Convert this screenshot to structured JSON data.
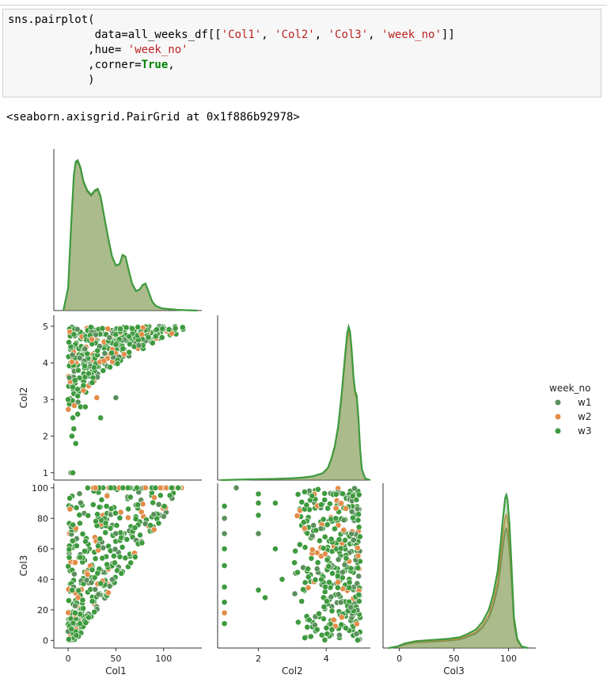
{
  "notebook": {
    "code_lines": [
      [
        {
          "t": "sns.pairplot("
        }
      ],
      [
        {
          "t": "             data=all_weeks_df[["
        },
        {
          "t": "'Col1'",
          "c": "str"
        },
        {
          "t": ", "
        },
        {
          "t": "'Col2'",
          "c": "str"
        },
        {
          "t": ", "
        },
        {
          "t": "'Col3'",
          "c": "str"
        },
        {
          "t": ", "
        },
        {
          "t": "'week_no'",
          "c": "str"
        },
        {
          "t": "]]"
        }
      ],
      [
        {
          "t": "            ,hue= "
        },
        {
          "t": "'week_no'",
          "c": "str"
        }
      ],
      [
        {
          "t": "            ,corner="
        },
        {
          "t": "True",
          "c": "kw"
        },
        {
          "t": ","
        }
      ],
      [
        {
          "t": "            )"
        }
      ]
    ],
    "output_repr": "<seaborn.axisgrid.PairGrid at 0x1f886b92978>"
  },
  "chart_data": {
    "type": "pairplot",
    "variables": [
      "Col1",
      "Col2",
      "Col3"
    ],
    "hue": "week_no",
    "corner": true,
    "legend": {
      "title": "week_no",
      "placement": "right",
      "entries": [
        {
          "label": "w1",
          "color": "#5a8f5c"
        },
        {
          "label": "w2",
          "color": "#e28c48"
        },
        {
          "label": "w3",
          "color": "#3e9a3e"
        }
      ]
    },
    "axes": {
      "Col1": {
        "range": [
          -15,
          140
        ],
        "ticks": [
          0,
          50,
          100
        ],
        "label": "Col1"
      },
      "Col2": {
        "range": [
          0.8,
          5.3
        ],
        "ticks": [
          1,
          2,
          3,
          4,
          5
        ],
        "label": "Col2"
      },
      "Col3": {
        "range": [
          -5,
          103
        ],
        "ticks": [
          0,
          20,
          40,
          60,
          80,
          100
        ],
        "label": "Col3"
      }
    },
    "diag_col3_range": [
      -15,
      125
    ],
    "kde": {
      "Col1": [
        [
          -5,
          0
        ],
        [
          0,
          0.15
        ],
        [
          3,
          0.55
        ],
        [
          6,
          0.9
        ],
        [
          8,
          0.99
        ],
        [
          10,
          1.0
        ],
        [
          13,
          0.95
        ],
        [
          16,
          0.86
        ],
        [
          20,
          0.8
        ],
        [
          24,
          0.77
        ],
        [
          28,
          0.8
        ],
        [
          31,
          0.81
        ],
        [
          34,
          0.76
        ],
        [
          38,
          0.62
        ],
        [
          42,
          0.48
        ],
        [
          46,
          0.36
        ],
        [
          50,
          0.3
        ],
        [
          54,
          0.31
        ],
        [
          57,
          0.37
        ],
        [
          60,
          0.36
        ],
        [
          63,
          0.28
        ],
        [
          67,
          0.18
        ],
        [
          71,
          0.13
        ],
        [
          75,
          0.14
        ],
        [
          78,
          0.17
        ],
        [
          81,
          0.18
        ],
        [
          84,
          0.13
        ],
        [
          88,
          0.06
        ],
        [
          92,
          0.03
        ],
        [
          98,
          0.015
        ],
        [
          105,
          0.01
        ],
        [
          115,
          0.005
        ],
        [
          125,
          0.002
        ],
        [
          135,
          0
        ]
      ],
      "Col2": [
        [
          0.9,
          0
        ],
        [
          1.5,
          0.003
        ],
        [
          2.0,
          0.006
        ],
        [
          2.5,
          0.008
        ],
        [
          3.0,
          0.012
        ],
        [
          3.3,
          0.016
        ],
        [
          3.6,
          0.025
        ],
        [
          3.9,
          0.045
        ],
        [
          4.05,
          0.08
        ],
        [
          4.15,
          0.14
        ],
        [
          4.25,
          0.22
        ],
        [
          4.35,
          0.35
        ],
        [
          4.45,
          0.55
        ],
        [
          4.55,
          0.8
        ],
        [
          4.62,
          0.96
        ],
        [
          4.66,
          1.0
        ],
        [
          4.7,
          0.97
        ],
        [
          4.75,
          0.85
        ],
        [
          4.8,
          0.68
        ],
        [
          4.85,
          0.58
        ],
        [
          4.9,
          0.55
        ],
        [
          4.95,
          0.4
        ],
        [
          5.0,
          0.2
        ],
        [
          5.05,
          0.07
        ],
        [
          5.15,
          0.01
        ],
        [
          5.3,
          0
        ]
      ],
      "Col3": [
        [
          -10,
          0
        ],
        [
          -2,
          0.01
        ],
        [
          5,
          0.03
        ],
        [
          15,
          0.045
        ],
        [
          25,
          0.05
        ],
        [
          35,
          0.055
        ],
        [
          45,
          0.06
        ],
        [
          55,
          0.07
        ],
        [
          62,
          0.09
        ],
        [
          70,
          0.12
        ],
        [
          76,
          0.17
        ],
        [
          82,
          0.25
        ],
        [
          86,
          0.35
        ],
        [
          90,
          0.5
        ],
        [
          93,
          0.7
        ],
        [
          95,
          0.85
        ],
        [
          97,
          0.98
        ],
        [
          98,
          1.0
        ],
        [
          99,
          0.97
        ],
        [
          101,
          0.8
        ],
        [
          103,
          0.5
        ],
        [
          105,
          0.2
        ],
        [
          108,
          0.06
        ],
        [
          112,
          0.01
        ],
        [
          118,
          0
        ]
      ]
    }
  }
}
